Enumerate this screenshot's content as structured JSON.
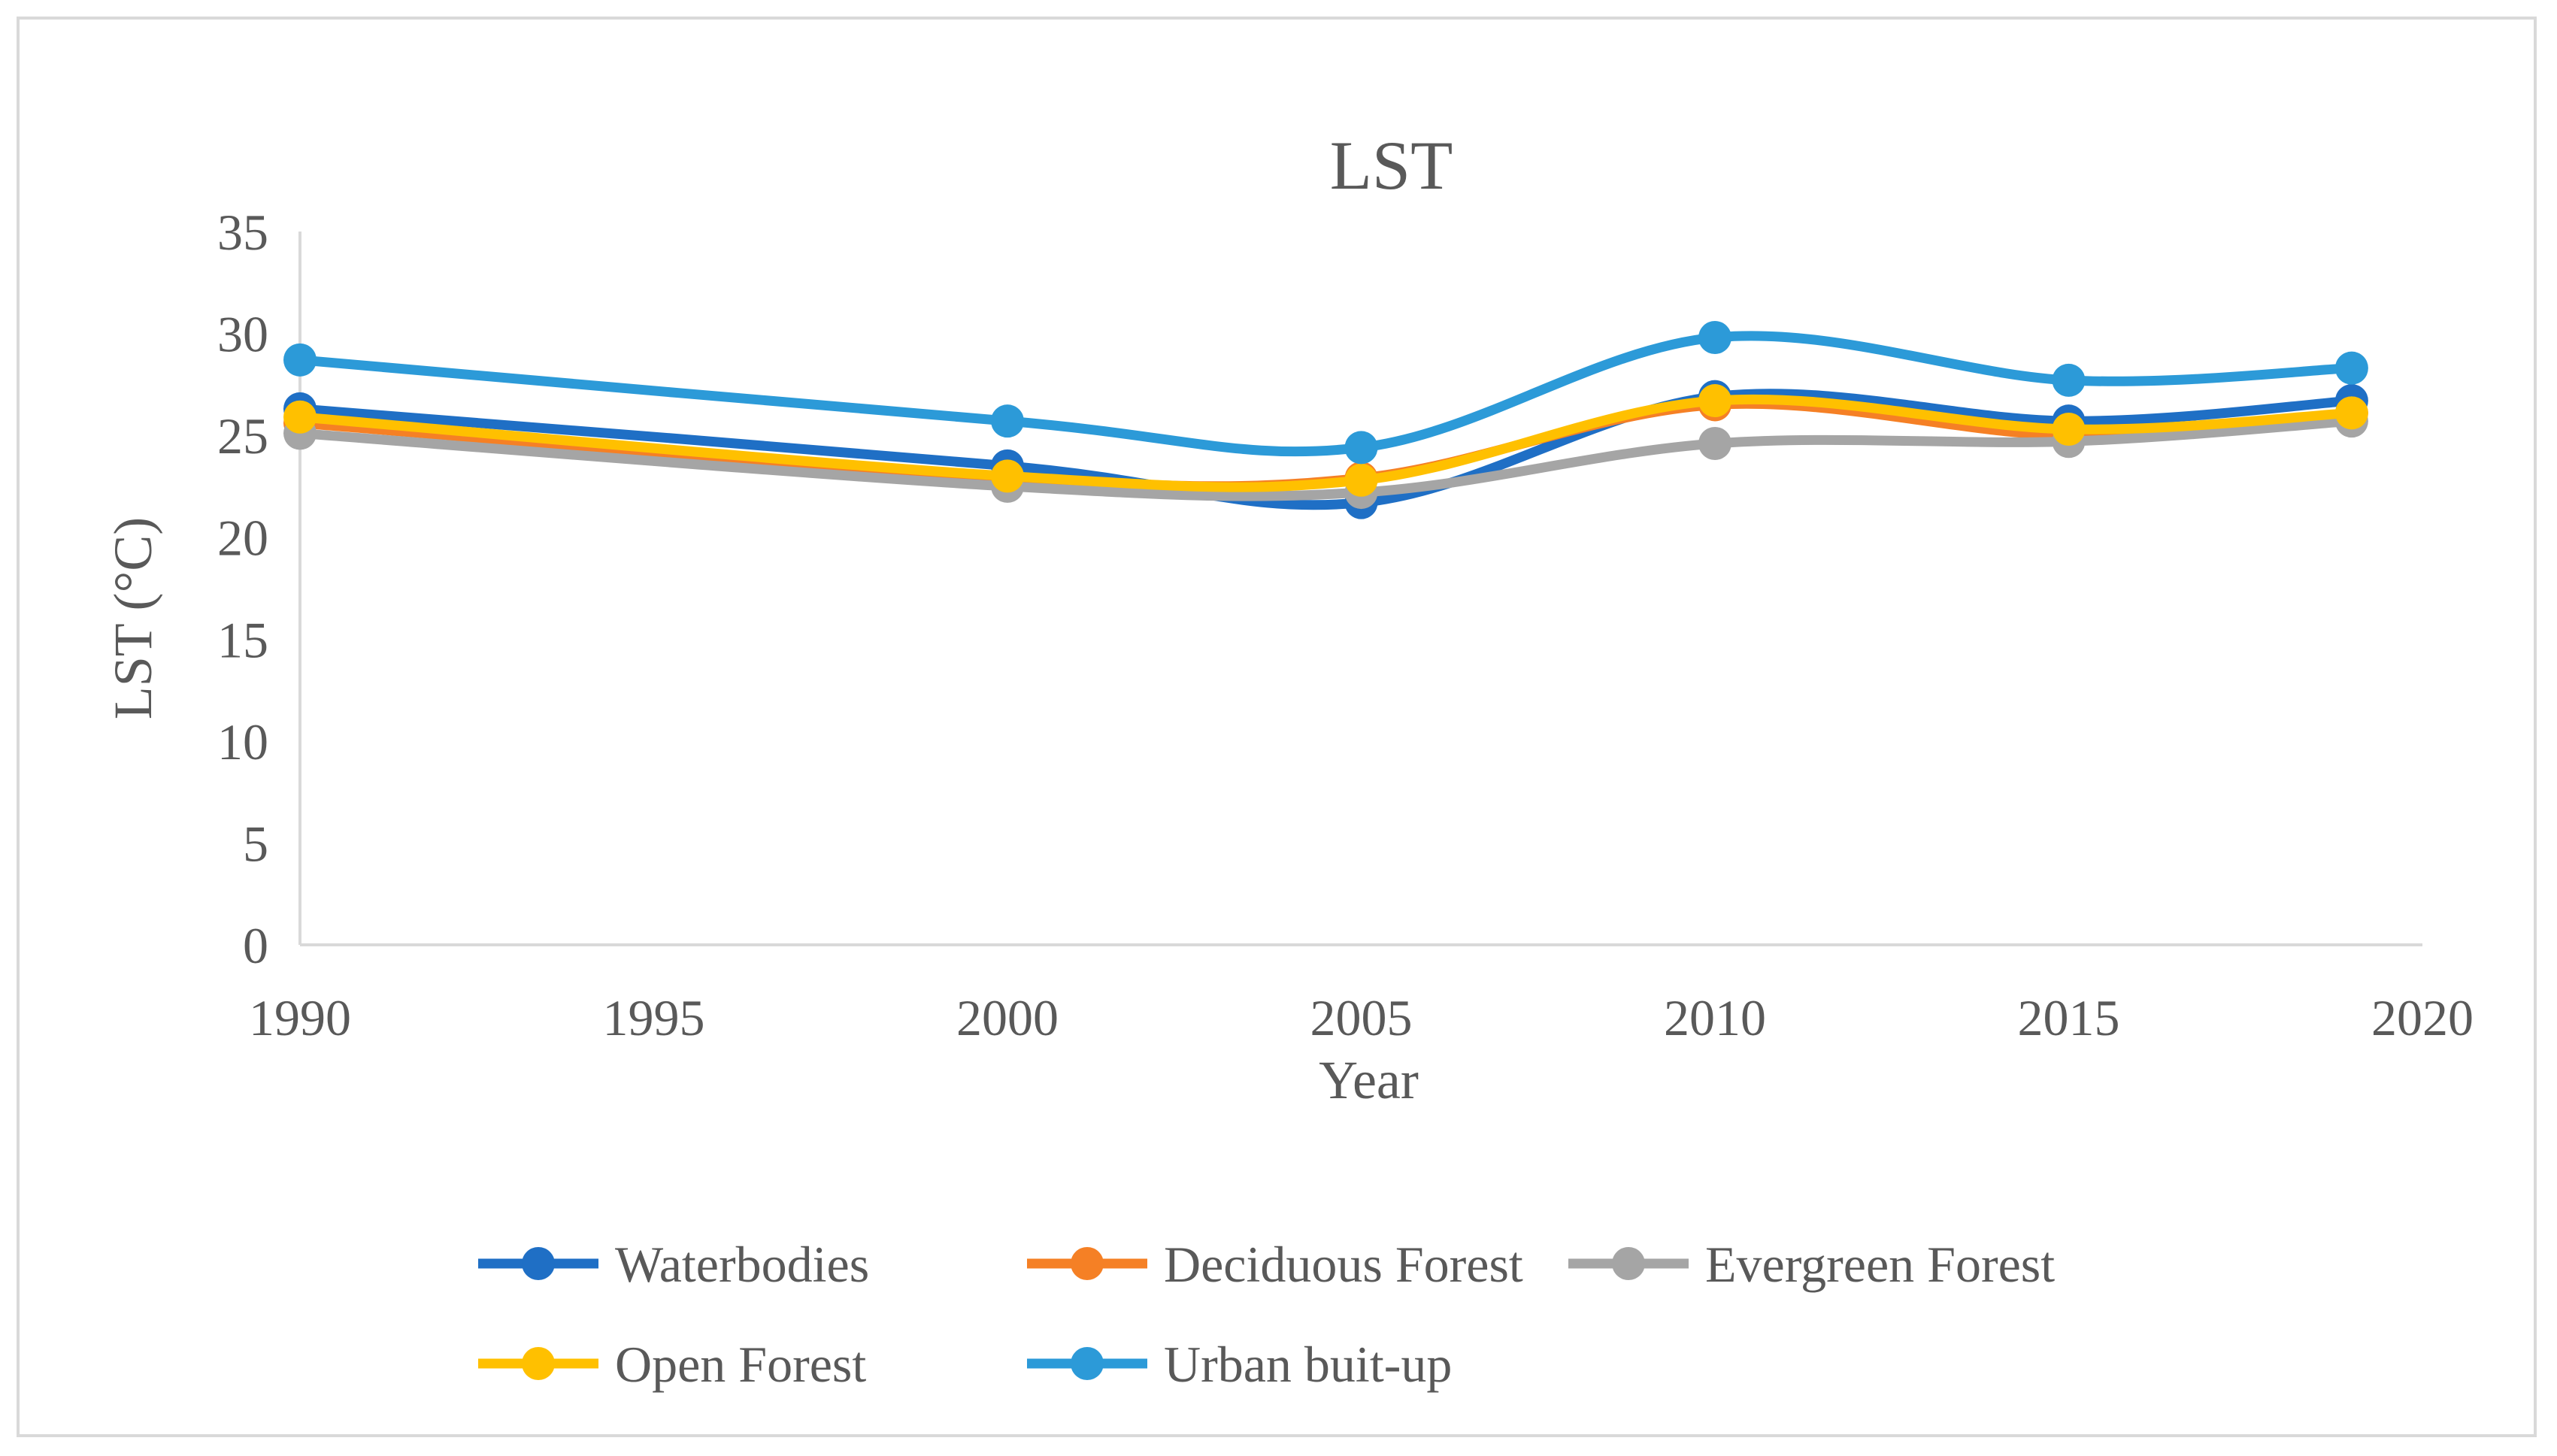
{
  "chart_data": {
    "type": "line",
    "title": "LST",
    "xlabel": "Year",
    "ylabel": "LST (°C)",
    "xlim": [
      1990,
      2020
    ],
    "ylim": [
      0,
      35
    ],
    "x_ticks": [
      1990,
      1995,
      2000,
      2005,
      2010,
      2015,
      2020
    ],
    "y_ticks": [
      0,
      5,
      10,
      15,
      20,
      25,
      30,
      35
    ],
    "grid": false,
    "smooth": true,
    "legend_position": "bottom",
    "x": [
      1990,
      2000,
      2005,
      2010,
      2015,
      2019
    ],
    "series": [
      {
        "name": "Waterbodies",
        "color": "#1f6fc5",
        "values": [
          26.3,
          23.5,
          21.7,
          26.9,
          25.7,
          26.7
        ]
      },
      {
        "name": "Deciduous Forest",
        "color": "#f58025",
        "values": [
          25.6,
          22.9,
          22.9,
          26.5,
          25.0,
          26.1
        ]
      },
      {
        "name": "Evergreen Forest",
        "color": "#a5a5a5",
        "values": [
          25.1,
          22.5,
          22.2,
          24.6,
          24.7,
          25.7
        ]
      },
      {
        "name": "Open Forest",
        "color": "#ffc000",
        "values": [
          25.9,
          23.0,
          22.8,
          26.7,
          25.3,
          26.1
        ]
      },
      {
        "name": "Urban buit-up",
        "color": "#2c9ad8",
        "values": [
          28.7,
          25.7,
          24.4,
          29.8,
          27.7,
          28.3
        ]
      }
    ]
  }
}
